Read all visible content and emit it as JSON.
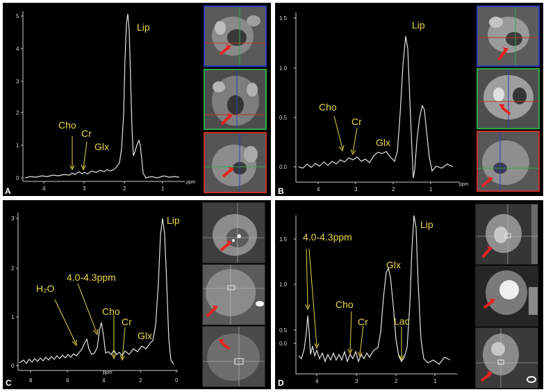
{
  "figure": {
    "colors": {
      "label": "#e8d84a",
      "spectrum": "#e6e6e6",
      "arrow_red": "#e8231e",
      "axis": "#cfcfcf",
      "border_blue": "#2b3fb8",
      "border_green": "#2fa84a",
      "border_red": "#c8302a"
    }
  },
  "panels": [
    {
      "id": "A",
      "letter": "A",
      "x_unit": "ppm",
      "y_ticks": [
        "5",
        "4",
        "3",
        "2",
        "1",
        "0"
      ],
      "x_ticks": [
        "4",
        "3",
        "2",
        "1"
      ],
      "peaks": [
        {
          "label": "Cho",
          "ppm": 3.2
        },
        {
          "label": "Cr",
          "ppm": 3.0
        },
        {
          "label": "Glx",
          "ppm": 2.35
        },
        {
          "label": "Lip",
          "ppm": 1.35
        }
      ],
      "thumbnail_icons": [
        "axial-mri-icon",
        "coronal-mri-icon",
        "sagittal-mri-icon"
      ]
    },
    {
      "id": "B",
      "letter": "B",
      "x_unit": "ppm",
      "y_ticks": [
        "1.5",
        "1.0",
        "0.5",
        "0.0"
      ],
      "x_ticks": [
        "4",
        "3",
        "2",
        "1"
      ],
      "peaks": [
        {
          "label": "Cho",
          "ppm": 3.2
        },
        {
          "label": "Cr",
          "ppm": 3.0
        },
        {
          "label": "Glx",
          "ppm": 2.2
        },
        {
          "label": "Lip",
          "ppm": 1.3
        }
      ],
      "thumbnail_icons": [
        "axial-mri-icon",
        "coronal-mri-icon",
        "sagittal-mri-icon"
      ]
    },
    {
      "id": "C",
      "letter": "C",
      "x_unit": "ppm",
      "y_ticks": [
        "3",
        "2",
        "1",
        "0"
      ],
      "x_ticks": [
        "8",
        "6",
        "4",
        "2",
        "0"
      ],
      "peaks": [
        {
          "label": "H₂O",
          "ppm": 4.7
        },
        {
          "label": "4.0-4.3ppm",
          "ppm": 4.2
        },
        {
          "label": "Cho",
          "ppm": 3.2
        },
        {
          "label": "Cr",
          "ppm": 3.0
        },
        {
          "label": "Glx",
          "ppm": 2.3
        },
        {
          "label": "Lip",
          "ppm": 1.3
        }
      ],
      "thumbnail_icons": [
        "axial-mri-icon",
        "coronal-mri-icon",
        "sagittal-mri-icon"
      ]
    },
    {
      "id": "D",
      "letter": "D",
      "x_unit": "ppm",
      "y_ticks": [
        "1.5",
        "1.0",
        "0.5",
        "0.0"
      ],
      "x_ticks": [
        "4",
        "3",
        "2",
        "1"
      ],
      "peaks": [
        {
          "label": "4.0-4.3ppm",
          "ppm": 4.2
        },
        {
          "label": "Cho",
          "ppm": 3.2
        },
        {
          "label": "Cr",
          "ppm": 3.0
        },
        {
          "label": "Glx",
          "ppm": 2.2
        },
        {
          "label": "Lac",
          "ppm": 1.33
        },
        {
          "label": "Lip",
          "ppm": 1.3
        }
      ],
      "thumbnail_icons": [
        "axial-mri-icon",
        "coronal-mri-icon",
        "sagittal-mri-icon"
      ]
    }
  ]
}
